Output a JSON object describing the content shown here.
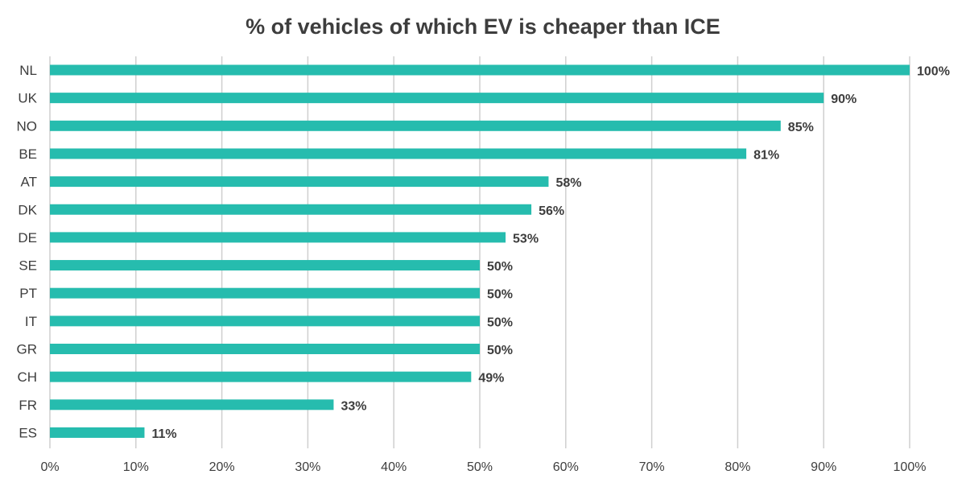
{
  "chart_data": {
    "type": "bar",
    "orientation": "horizontal",
    "title": "% of vehicles of which EV is cheaper than ICE",
    "xlabel": "",
    "ylabel": "",
    "categories": [
      "NL",
      "UK",
      "NO",
      "BE",
      "AT",
      "DK",
      "DE",
      "SE",
      "PT",
      "IT",
      "GR",
      "CH",
      "FR",
      "ES"
    ],
    "values": [
      100,
      90,
      85,
      81,
      58,
      56,
      53,
      50,
      50,
      50,
      50,
      49,
      33,
      11
    ],
    "value_labels": [
      "100%",
      "90%",
      "85%",
      "81%",
      "58%",
      "56%",
      "53%",
      "50%",
      "50%",
      "50%",
      "50%",
      "49%",
      "33%",
      "11%"
    ],
    "xlim": [
      0,
      100
    ],
    "x_ticks": [
      0,
      10,
      20,
      30,
      40,
      50,
      60,
      70,
      80,
      90,
      100
    ],
    "x_tick_labels": [
      "0%",
      "10%",
      "20%",
      "30%",
      "40%",
      "50%",
      "60%",
      "70%",
      "80%",
      "90%",
      "100%"
    ],
    "grid": "vertical",
    "legend": "none",
    "colors": {
      "bar": "#26bcae",
      "text": "#3d3d3d",
      "grid": "#cfcfcf"
    }
  }
}
